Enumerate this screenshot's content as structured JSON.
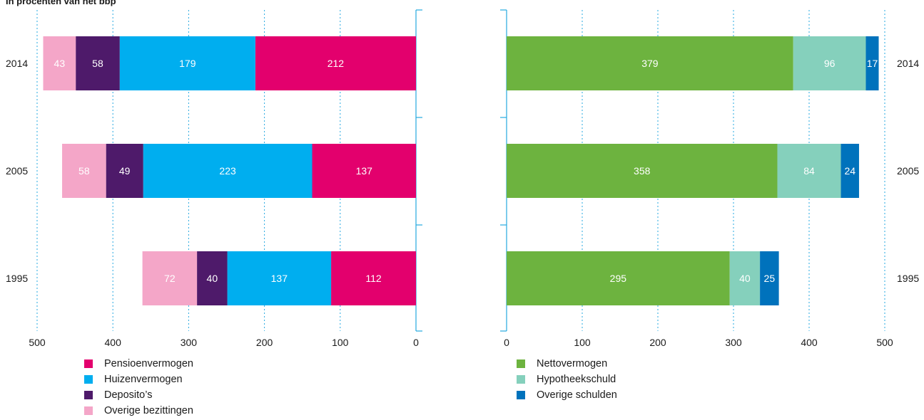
{
  "subtitle": "In procenten van het bbp",
  "chart_data": [
    {
      "type": "bar",
      "orientation": "horizontal",
      "stacked": true,
      "x_direction": "reversed",
      "categories": [
        "2014",
        "2005",
        "1995"
      ],
      "series": [
        {
          "name": "Pensioenvermogen",
          "color": "#e3006d",
          "values": [
            212,
            137,
            112
          ]
        },
        {
          "name": "Huizenvermogen",
          "color": "#00aeef",
          "values": [
            179,
            223,
            137
          ]
        },
        {
          "name": "Deposito’s",
          "color": "#4e1a6a",
          "values": [
            58,
            49,
            40
          ]
        },
        {
          "name": "Overige bezittingen",
          "color": "#f4a6c8",
          "values": [
            43,
            58,
            72
          ]
        }
      ],
      "xlim": [
        500,
        0
      ],
      "xticks": [
        "500",
        "400",
        "300",
        "200",
        "100",
        "0"
      ],
      "grid": true,
      "legend": "bottom"
    },
    {
      "type": "bar",
      "orientation": "horizontal",
      "stacked": true,
      "categories": [
        "2014",
        "2005",
        "1995"
      ],
      "series": [
        {
          "name": "Nettovermogen",
          "color": "#6db33f",
          "values": [
            379,
            358,
            295
          ]
        },
        {
          "name": "Hypotheekschuld",
          "color": "#85d0bc",
          "values": [
            96,
            84,
            40
          ]
        },
        {
          "name": "Overige schulden",
          "color": "#0072bc",
          "values": [
            17,
            24,
            25
          ]
        }
      ],
      "xlim": [
        0,
        500
      ],
      "xticks": [
        "0",
        "100",
        "200",
        "300",
        "400",
        "500"
      ],
      "grid": true,
      "legend": "bottom"
    }
  ]
}
